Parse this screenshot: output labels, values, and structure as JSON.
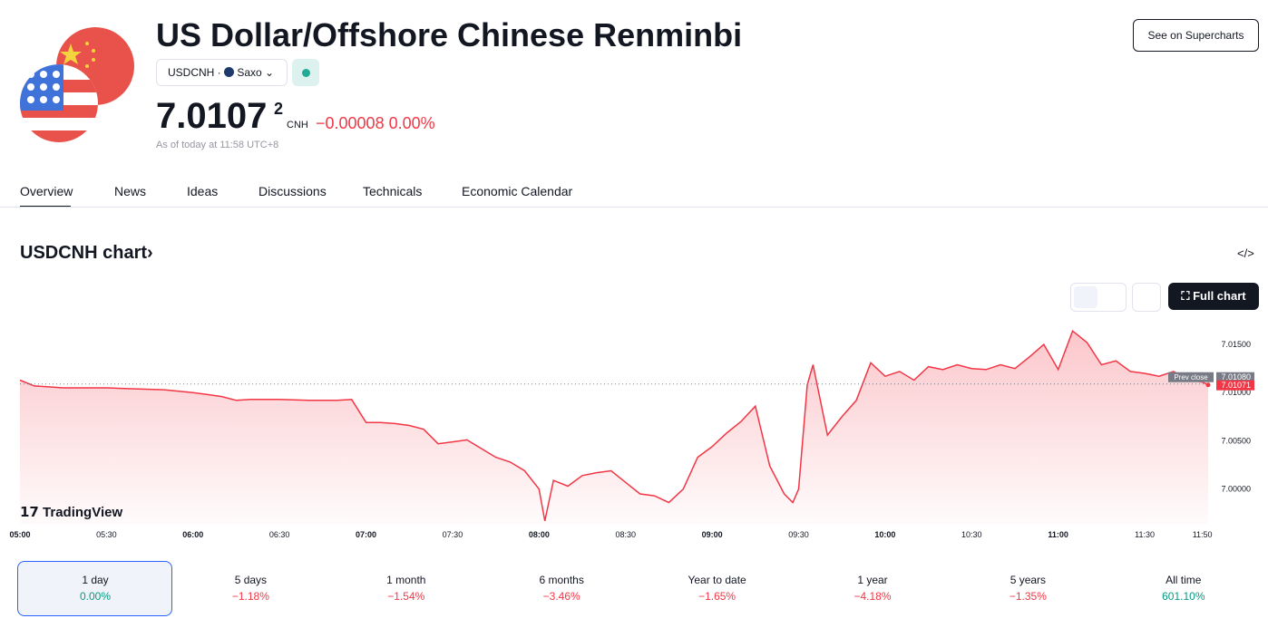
{
  "header": {
    "title": "US Dollar/Offshore Chinese Renminbi",
    "symbol": "USDCNH",
    "exchange": "Saxo",
    "price": "7.0107",
    "price_superscript": "2",
    "currency": "CNH",
    "change": "−0.00008",
    "change_percent": "0.00%",
    "timestamp": "As of today at 11:58 UTC+8",
    "button": "See on Supercharts"
  },
  "tabs": [
    "Overview",
    "News",
    "Ideas",
    "Discussions",
    "Technicals",
    "Economic Calendar"
  ],
  "section_title": "USDCNH chart",
  "full_chart_button": "Full chart",
  "logo": "TradingView",
  "chart_data": {
    "type": "line",
    "x": [
      "05:00",
      "05:05",
      "05:10",
      "05:15",
      "05:20",
      "05:30",
      "05:40",
      "05:50",
      "06:00",
      "06:05",
      "06:10",
      "06:15",
      "06:20",
      "06:25",
      "06:30",
      "06:40",
      "06:50",
      "06:55",
      "07:00",
      "07:05",
      "07:10",
      "07:15",
      "07:20",
      "07:25",
      "07:30",
      "07:35",
      "07:40",
      "07:45",
      "07:50",
      "07:55",
      "08:00",
      "08:02",
      "08:05",
      "08:10",
      "08:15",
      "08:20",
      "08:25",
      "08:30",
      "08:35",
      "08:40",
      "08:45",
      "08:50",
      "08:55",
      "09:00",
      "09:05",
      "09:10",
      "09:15",
      "09:20",
      "09:25",
      "09:28",
      "09:30",
      "09:33",
      "09:35",
      "09:40",
      "09:45",
      "09:50",
      "09:55",
      "10:00",
      "10:05",
      "10:10",
      "10:15",
      "10:20",
      "10:25",
      "10:30",
      "10:35",
      "10:40",
      "10:45",
      "10:50",
      "10:55",
      "11:00",
      "11:05",
      "11:10",
      "11:15",
      "11:20",
      "11:25",
      "11:30",
      "11:35",
      "11:40",
      "11:45",
      "11:50",
      "11:52"
    ],
    "series": [
      {
        "name": "USDCNH",
        "color": "#f23645",
        "values": [
          7.0112,
          7.0106,
          7.0105,
          7.0104,
          7.0104,
          7.0104,
          7.0103,
          7.0102,
          7.0099,
          7.0097,
          7.0095,
          7.0091,
          7.0092,
          7.0092,
          7.0092,
          7.0091,
          7.0091,
          7.0092,
          7.0068,
          7.0068,
          7.0067,
          7.0065,
          7.0061,
          7.0046,
          7.0048,
          7.005,
          7.0041,
          7.0032,
          7.0027,
          7.0018,
          6.9999,
          6.9966,
          7.0008,
          7.0002,
          7.0013,
          7.0016,
          7.0018,
          7.0006,
          6.9994,
          6.9992,
          6.9985,
          6.9999,
          7.0032,
          7.0043,
          7.0057,
          7.0069,
          7.0085,
          7.0023,
          6.9994,
          6.9985,
          6.9999,
          7.0107,
          7.0128,
          7.0055,
          7.0074,
          7.0091,
          7.013,
          7.0116,
          7.0121,
          7.0112,
          7.0126,
          7.0123,
          7.0128,
          7.0124,
          7.0123,
          7.0128,
          7.0124,
          7.0136,
          7.0149,
          7.0123,
          7.0163,
          7.0151,
          7.0128,
          7.0132,
          7.0121,
          7.0119,
          7.0116,
          7.0121,
          7.0113,
          7.011,
          7.01071
        ]
      }
    ],
    "ylim": [
      6.9963,
      7.0182
    ],
    "yticks": [
      {
        "value": 7.0,
        "label": "7.00000"
      },
      {
        "value": 7.005,
        "label": "7.00500"
      },
      {
        "value": 7.01,
        "label": "7.01000"
      },
      {
        "value": 7.015,
        "label": "7.01500"
      }
    ],
    "xticks": [
      "05:00",
      "05:30",
      "06:00",
      "06:30",
      "07:00",
      "07:30",
      "08:00",
      "08:30",
      "09:00",
      "09:30",
      "10:00",
      "10:30",
      "11:00",
      "11:30",
      "11:50"
    ],
    "prev_close": {
      "label": "Prev close",
      "value": 7.0108,
      "value_label": "7.01080"
    },
    "last": {
      "value": 7.01071,
      "value_label": "7.01071"
    }
  },
  "periods": [
    {
      "label": "1 day",
      "change": "0.00%",
      "color": "#089981"
    },
    {
      "label": "5 days",
      "change": "−1.18%",
      "color": "#f23645"
    },
    {
      "label": "1 month",
      "change": "−1.54%",
      "color": "#f23645"
    },
    {
      "label": "6 months",
      "change": "−3.46%",
      "color": "#f23645"
    },
    {
      "label": "Year to date",
      "change": "−1.65%",
      "color": "#f23645"
    },
    {
      "label": "1 year",
      "change": "−4.18%",
      "color": "#f23645"
    },
    {
      "label": "5 years",
      "change": "−1.35%",
      "color": "#f23645"
    },
    {
      "label": "All time",
      "change": "601.10%",
      "color": "#089981"
    }
  ]
}
